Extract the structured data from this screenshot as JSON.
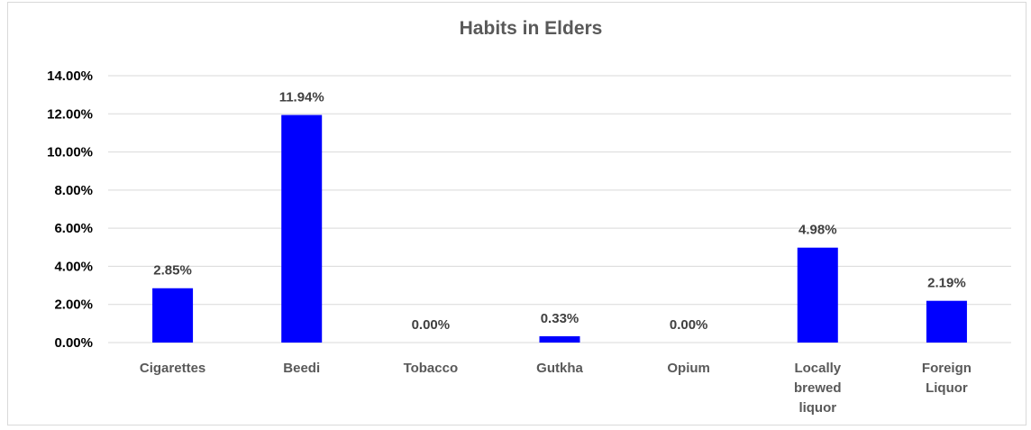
{
  "chart_data": {
    "type": "bar",
    "title": "Habits in Elders",
    "categories": [
      [
        "Cigarettes"
      ],
      [
        "Beedi"
      ],
      [
        "Tobacco"
      ],
      [
        "Gutkha"
      ],
      [
        "Opium"
      ],
      [
        "Locally",
        "brewed",
        "liquor"
      ],
      [
        "Foreign",
        "Liquor"
      ]
    ],
    "values": [
      2.85,
      11.94,
      0.0,
      0.33,
      0.0,
      4.98,
      2.19
    ],
    "data_labels": [
      "2.85%",
      "11.94%",
      "0.00%",
      "0.33%",
      "0.00%",
      "4.98%",
      "2.19%"
    ],
    "ylim": [
      0,
      14
    ],
    "y_ticks": [
      "0.00%",
      "2.00%",
      "4.00%",
      "6.00%",
      "8.00%",
      "10.00%",
      "12.00%",
      "14.00%"
    ],
    "grid": true,
    "bar_color": "#0000ff"
  }
}
